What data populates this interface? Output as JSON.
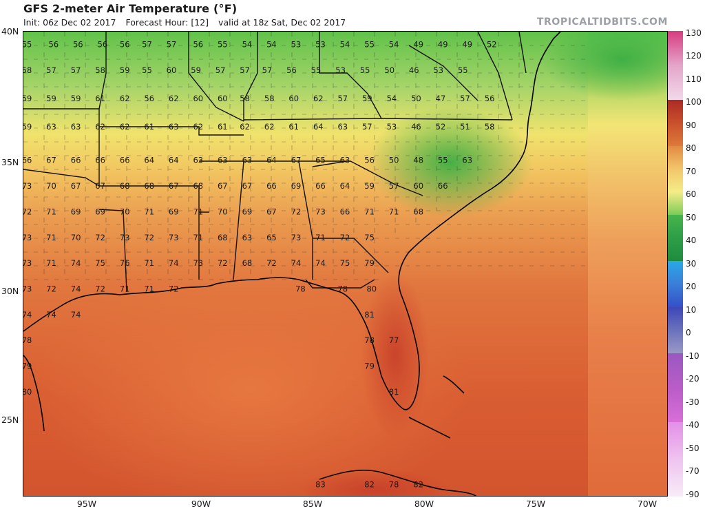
{
  "header": {
    "title": "GFS 2-meter Air Temperature (°F)",
    "init": "Init: 06z Dec 02 2017",
    "forecast": "Forecast Hour: [12]",
    "valid": "valid at 18z Sat, Dec 02 2017",
    "brand": "TROPICALTIDBITS.COM"
  },
  "axes": {
    "lat_labels": [
      "40N",
      "35N",
      "30N",
      "25N"
    ],
    "lon_labels": [
      "95W",
      "90W",
      "85W",
      "80W",
      "75W",
      "70W"
    ]
  },
  "colorbar": {
    "labels": [
      "130",
      "120",
      "110",
      "100",
      "90",
      "80",
      "70",
      "60",
      "50",
      "40",
      "30",
      "20",
      "10",
      "0",
      "-10",
      "-20",
      "-30",
      "-40",
      "-50",
      "-70",
      "-90"
    ]
  },
  "map": {
    "rows": [
      {
        "lat": 39.5,
        "values": [
          {
            "lon": -98.0,
            "v": "55"
          },
          {
            "lon": -96.8,
            "v": "56"
          },
          {
            "lon": -95.7,
            "v": "56"
          },
          {
            "lon": -94.6,
            "v": "56"
          },
          {
            "lon": -93.6,
            "v": "56"
          },
          {
            "lon": -92.6,
            "v": "57"
          },
          {
            "lon": -91.5,
            "v": "57"
          },
          {
            "lon": -90.3,
            "v": "56"
          },
          {
            "lon": -89.2,
            "v": "55"
          },
          {
            "lon": -88.1,
            "v": "54"
          },
          {
            "lon": -87.0,
            "v": "54"
          },
          {
            "lon": -85.9,
            "v": "53"
          },
          {
            "lon": -84.8,
            "v": "53"
          },
          {
            "lon": -83.7,
            "v": "54"
          },
          {
            "lon": -82.6,
            "v": "55"
          },
          {
            "lon": -81.5,
            "v": "54"
          },
          {
            "lon": -80.4,
            "v": "49"
          },
          {
            "lon": -79.3,
            "v": "49"
          },
          {
            "lon": -78.2,
            "v": "49"
          },
          {
            "lon": -77.1,
            "v": "52"
          }
        ]
      },
      {
        "lat": 38.5,
        "values": [
          {
            "lon": -98.0,
            "v": "58"
          },
          {
            "lon": -96.9,
            "v": "57"
          },
          {
            "lon": -95.8,
            "v": "57"
          },
          {
            "lon": -94.7,
            "v": "58"
          },
          {
            "lon": -93.6,
            "v": "59"
          },
          {
            "lon": -92.6,
            "v": "55"
          },
          {
            "lon": -91.5,
            "v": "60"
          },
          {
            "lon": -90.4,
            "v": "59"
          },
          {
            "lon": -89.3,
            "v": "57"
          },
          {
            "lon": -88.2,
            "v": "57"
          },
          {
            "lon": -87.2,
            "v": "57"
          },
          {
            "lon": -86.1,
            "v": "56"
          },
          {
            "lon": -85.0,
            "v": "55"
          },
          {
            "lon": -83.9,
            "v": "53"
          },
          {
            "lon": -82.8,
            "v": "55"
          },
          {
            "lon": -81.7,
            "v": "50"
          },
          {
            "lon": -80.6,
            "v": "46"
          },
          {
            "lon": -79.5,
            "v": "53"
          },
          {
            "lon": -78.4,
            "v": "55"
          }
        ]
      },
      {
        "lat": 37.4,
        "values": [
          {
            "lon": -98.0,
            "v": "59"
          },
          {
            "lon": -96.9,
            "v": "59"
          },
          {
            "lon": -95.8,
            "v": "59"
          },
          {
            "lon": -94.7,
            "v": "61"
          },
          {
            "lon": -93.6,
            "v": "62"
          },
          {
            "lon": -92.5,
            "v": "56"
          },
          {
            "lon": -91.4,
            "v": "62"
          },
          {
            "lon": -90.3,
            "v": "60"
          },
          {
            "lon": -89.2,
            "v": "60"
          },
          {
            "lon": -88.2,
            "v": "58"
          },
          {
            "lon": -87.1,
            "v": "58"
          },
          {
            "lon": -86.0,
            "v": "60"
          },
          {
            "lon": -84.9,
            "v": "62"
          },
          {
            "lon": -83.8,
            "v": "57"
          },
          {
            "lon": -82.7,
            "v": "59"
          },
          {
            "lon": -81.6,
            "v": "54"
          },
          {
            "lon": -80.5,
            "v": "50"
          },
          {
            "lon": -79.4,
            "v": "47"
          },
          {
            "lon": -78.3,
            "v": "57"
          },
          {
            "lon": -77.2,
            "v": "56"
          }
        ]
      },
      {
        "lat": 36.3,
        "values": [
          {
            "lon": -98.0,
            "v": "59"
          },
          {
            "lon": -96.9,
            "v": "63"
          },
          {
            "lon": -95.8,
            "v": "63"
          },
          {
            "lon": -94.7,
            "v": "62"
          },
          {
            "lon": -93.6,
            "v": "62"
          },
          {
            "lon": -92.5,
            "v": "61"
          },
          {
            "lon": -91.4,
            "v": "63"
          },
          {
            "lon": -90.3,
            "v": "62"
          },
          {
            "lon": -89.2,
            "v": "61"
          },
          {
            "lon": -88.2,
            "v": "62"
          },
          {
            "lon": -87.1,
            "v": "62"
          },
          {
            "lon": -86.0,
            "v": "61"
          },
          {
            "lon": -84.9,
            "v": "64"
          },
          {
            "lon": -83.8,
            "v": "63"
          },
          {
            "lon": -82.7,
            "v": "57"
          },
          {
            "lon": -81.6,
            "v": "53"
          },
          {
            "lon": -80.5,
            "v": "46"
          },
          {
            "lon": -79.4,
            "v": "52"
          },
          {
            "lon": -78.3,
            "v": "51"
          },
          {
            "lon": -77.2,
            "v": "58"
          }
        ]
      },
      {
        "lat": 35.0,
        "values": [
          {
            "lon": -98.0,
            "v": "66"
          },
          {
            "lon": -96.9,
            "v": "67"
          },
          {
            "lon": -95.8,
            "v": "66"
          },
          {
            "lon": -94.7,
            "v": "66"
          },
          {
            "lon": -93.6,
            "v": "66"
          },
          {
            "lon": -92.5,
            "v": "64"
          },
          {
            "lon": -91.4,
            "v": "64"
          },
          {
            "lon": -90.3,
            "v": "63"
          },
          {
            "lon": -89.2,
            "v": "63"
          },
          {
            "lon": -88.1,
            "v": "63"
          },
          {
            "lon": -87.0,
            "v": "64"
          },
          {
            "lon": -85.9,
            "v": "67"
          },
          {
            "lon": -84.8,
            "v": "65"
          },
          {
            "lon": -83.7,
            "v": "63"
          },
          {
            "lon": -82.6,
            "v": "56"
          },
          {
            "lon": -81.5,
            "v": "50"
          },
          {
            "lon": -80.4,
            "v": "48"
          },
          {
            "lon": -79.3,
            "v": "55"
          },
          {
            "lon": -78.2,
            "v": "63"
          }
        ]
      },
      {
        "lat": 34.0,
        "values": [
          {
            "lon": -98.0,
            "v": "73"
          },
          {
            "lon": -96.9,
            "v": "70"
          },
          {
            "lon": -95.8,
            "v": "67"
          },
          {
            "lon": -94.7,
            "v": "67"
          },
          {
            "lon": -93.6,
            "v": "68"
          },
          {
            "lon": -92.5,
            "v": "68"
          },
          {
            "lon": -91.4,
            "v": "67"
          },
          {
            "lon": -90.3,
            "v": "68"
          },
          {
            "lon": -89.2,
            "v": "67"
          },
          {
            "lon": -88.1,
            "v": "67"
          },
          {
            "lon": -87.0,
            "v": "66"
          },
          {
            "lon": -85.9,
            "v": "69"
          },
          {
            "lon": -84.8,
            "v": "66"
          },
          {
            "lon": -83.7,
            "v": "64"
          },
          {
            "lon": -82.6,
            "v": "59"
          },
          {
            "lon": -81.5,
            "v": "57"
          },
          {
            "lon": -80.4,
            "v": "60"
          },
          {
            "lon": -79.3,
            "v": "66"
          }
        ]
      },
      {
        "lat": 33.0,
        "values": [
          {
            "lon": -98.0,
            "v": "72"
          },
          {
            "lon": -96.9,
            "v": "71"
          },
          {
            "lon": -95.8,
            "v": "69"
          },
          {
            "lon": -94.7,
            "v": "69"
          },
          {
            "lon": -93.6,
            "v": "70"
          },
          {
            "lon": -92.5,
            "v": "71"
          },
          {
            "lon": -91.4,
            "v": "69"
          },
          {
            "lon": -90.3,
            "v": "71"
          },
          {
            "lon": -89.2,
            "v": "70"
          },
          {
            "lon": -88.1,
            "v": "69"
          },
          {
            "lon": -87.0,
            "v": "67"
          },
          {
            "lon": -85.9,
            "v": "72"
          },
          {
            "lon": -84.8,
            "v": "73"
          },
          {
            "lon": -83.7,
            "v": "66"
          },
          {
            "lon": -82.6,
            "v": "71"
          },
          {
            "lon": -81.5,
            "v": "71"
          },
          {
            "lon": -80.4,
            "v": "68"
          }
        ]
      },
      {
        "lat": 32.0,
        "values": [
          {
            "lon": -98.0,
            "v": "73"
          },
          {
            "lon": -96.9,
            "v": "71"
          },
          {
            "lon": -95.8,
            "v": "70"
          },
          {
            "lon": -94.7,
            "v": "72"
          },
          {
            "lon": -93.6,
            "v": "73"
          },
          {
            "lon": -92.5,
            "v": "72"
          },
          {
            "lon": -91.4,
            "v": "73"
          },
          {
            "lon": -90.3,
            "v": "71"
          },
          {
            "lon": -89.2,
            "v": "68"
          },
          {
            "lon": -88.1,
            "v": "63"
          },
          {
            "lon": -87.0,
            "v": "65"
          },
          {
            "lon": -85.9,
            "v": "73"
          },
          {
            "lon": -84.8,
            "v": "71"
          },
          {
            "lon": -83.7,
            "v": "72"
          },
          {
            "lon": -82.6,
            "v": "75"
          }
        ]
      },
      {
        "lat": 31.0,
        "values": [
          {
            "lon": -98.0,
            "v": "73"
          },
          {
            "lon": -96.9,
            "v": "71"
          },
          {
            "lon": -95.8,
            "v": "74"
          },
          {
            "lon": -94.7,
            "v": "75"
          },
          {
            "lon": -93.6,
            "v": "76"
          },
          {
            "lon": -92.5,
            "v": "71"
          },
          {
            "lon": -91.4,
            "v": "74"
          },
          {
            "lon": -90.3,
            "v": "73"
          },
          {
            "lon": -89.2,
            "v": "72"
          },
          {
            "lon": -88.1,
            "v": "68"
          },
          {
            "lon": -87.0,
            "v": "72"
          },
          {
            "lon": -85.9,
            "v": "74"
          },
          {
            "lon": -84.8,
            "v": "74"
          },
          {
            "lon": -83.7,
            "v": "75"
          },
          {
            "lon": -82.6,
            "v": "79"
          }
        ]
      },
      {
        "lat": 30.0,
        "values": [
          {
            "lon": -98.0,
            "v": "73"
          },
          {
            "lon": -96.9,
            "v": "72"
          },
          {
            "lon": -95.8,
            "v": "74"
          },
          {
            "lon": -94.7,
            "v": "72"
          },
          {
            "lon": -93.6,
            "v": "71"
          },
          {
            "lon": -92.5,
            "v": "71"
          },
          {
            "lon": -91.4,
            "v": "72"
          },
          {
            "lon": -85.7,
            "v": "78"
          },
          {
            "lon": -83.8,
            "v": "78"
          },
          {
            "lon": -82.5,
            "v": "80"
          }
        ]
      },
      {
        "lat": 29.0,
        "values": [
          {
            "lon": -98.0,
            "v": "74"
          },
          {
            "lon": -96.9,
            "v": "74"
          },
          {
            "lon": -95.8,
            "v": "74"
          },
          {
            "lon": -82.6,
            "v": "81"
          }
        ]
      },
      {
        "lat": 28.0,
        "values": [
          {
            "lon": -98.0,
            "v": "78"
          },
          {
            "lon": -82.6,
            "v": "78"
          },
          {
            "lon": -81.5,
            "v": "77"
          }
        ]
      },
      {
        "lat": 27.0,
        "values": [
          {
            "lon": -98.0,
            "v": "79"
          },
          {
            "lon": -82.6,
            "v": "79"
          }
        ]
      },
      {
        "lat": 26.0,
        "values": [
          {
            "lon": -98.0,
            "v": "80"
          },
          {
            "lon": -81.5,
            "v": "81"
          }
        ]
      },
      {
        "lat": 22.4,
        "values": [
          {
            "lon": -84.8,
            "v": "83"
          },
          {
            "lon": -82.6,
            "v": "82"
          },
          {
            "lon": -81.5,
            "v": "78"
          },
          {
            "lon": -80.4,
            "v": "82"
          }
        ]
      }
    ]
  }
}
